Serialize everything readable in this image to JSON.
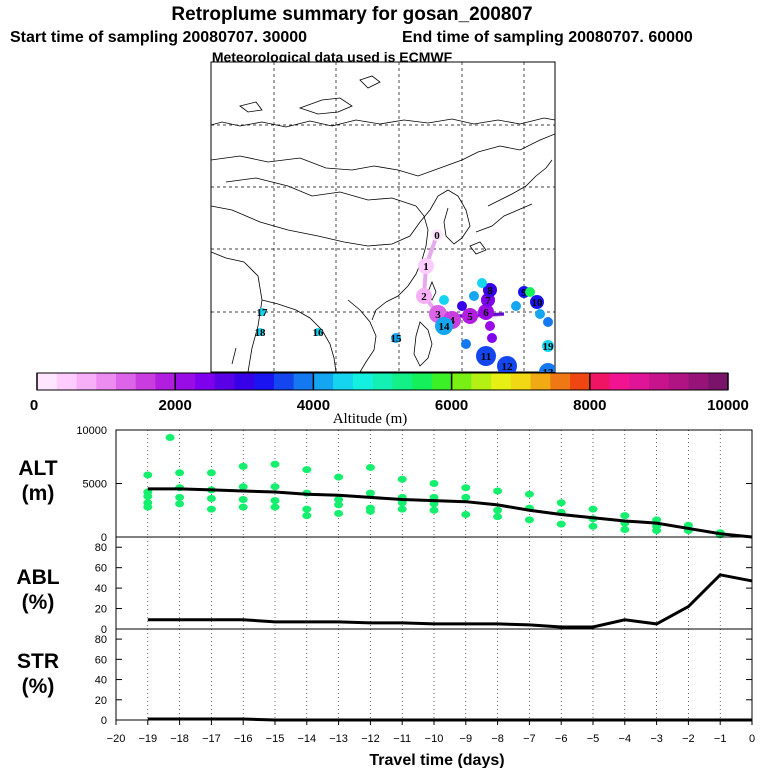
{
  "header": {
    "title": "Retroplume summary for gosan_200807",
    "start": "Start time of sampling 20080707. 30000",
    "end": "End time of sampling 20080707. 60000",
    "met": "Meteorological data used is ECMWF"
  },
  "colorbar": {
    "label": "Altitude (m)",
    "ticks": [
      "0",
      "2000",
      "4000",
      "6000",
      "8000",
      "10000"
    ],
    "colors": [
      "#ffe6ff",
      "#ffccff",
      "#f7b0f7",
      "#ec8cf0",
      "#dc64e8",
      "#c83ce0",
      "#b21ee0",
      "#9a0ce6",
      "#7e00ec",
      "#5a00e6",
      "#3800e6",
      "#1a14f0",
      "#1446f0",
      "#1478f0",
      "#14a6f0",
      "#14d4f0",
      "#14f0e0",
      "#14f0b4",
      "#14f088",
      "#14f05c",
      "#3cf028",
      "#78f014",
      "#b4f014",
      "#e6f014",
      "#f0d814",
      "#f0aa14",
      "#f07814",
      "#f04614",
      "#f01464",
      "#f01490",
      "#e01496",
      "#c8148c",
      "#b01482",
      "#961478",
      "#7a146a"
    ]
  },
  "map": {
    "numbered_positions": [
      "0",
      "1",
      "2",
      "3",
      "4",
      "5",
      "6",
      "7",
      "8",
      "9",
      "10",
      "11",
      "12",
      "13",
      "14",
      "15",
      "16",
      "17",
      "18",
      "19"
    ]
  },
  "panels": {
    "alt_label": "ALT",
    "alt_unit": "(m)",
    "abl_label": "ABL",
    "abl_unit": "(%)",
    "str_label": "STR",
    "str_unit": "(%)"
  },
  "xaxis": {
    "label": "Travel time (days)"
  },
  "chart_data": [
    {
      "type": "line",
      "title": "ALT",
      "ylabel": "ALT (m)",
      "xlabel": "Travel time (days)",
      "xlim": [
        -20,
        0
      ],
      "ylim": [
        0,
        10000
      ],
      "yticks": [
        0,
        5000,
        10000
      ],
      "xticks": [
        -20,
        -19,
        -18,
        -17,
        -16,
        -15,
        -14,
        -13,
        -12,
        -11,
        -10,
        -9,
        -8,
        -7,
        -6,
        -5,
        -4,
        -3,
        -2,
        -1,
        0
      ],
      "x": [
        -19,
        -18,
        -17,
        -16,
        -15,
        -14,
        -13,
        -12,
        -11,
        -10,
        -9,
        -8,
        -7,
        -6,
        -5,
        -4,
        -3,
        -2,
        -1,
        0
      ],
      "values": [
        4500,
        4500,
        4400,
        4300,
        4200,
        4000,
        3900,
        3700,
        3500,
        3400,
        3300,
        3000,
        2500,
        2100,
        1800,
        1500,
        1300,
        800,
        300,
        0
      ],
      "scatter_x": [
        -19,
        -19,
        -19,
        -19,
        -19,
        -18,
        -18,
        -18,
        -18,
        -17,
        -17,
        -17,
        -17,
        -16,
        -16,
        -16,
        -16,
        -15,
        -15,
        -15,
        -15,
        -14,
        -14,
        -14,
        -14,
        -13,
        -13,
        -13,
        -13,
        -12,
        -12,
        -12,
        -12,
        -11,
        -11,
        -11,
        -11,
        -10,
        -10,
        -10,
        -10,
        -9,
        -9,
        -9,
        -8,
        -8,
        -8,
        -7,
        -7,
        -7,
        -6,
        -6,
        -6,
        -5,
        -5,
        -5,
        -4,
        -4,
        -4,
        -3,
        -3,
        -3,
        -2,
        -2,
        -1,
        -1,
        -18.3
      ],
      "scatter_y": [
        5800,
        4200,
        3800,
        3200,
        2800,
        6000,
        4600,
        3700,
        3100,
        6000,
        4400,
        3600,
        2600,
        6600,
        4700,
        3500,
        2800,
        6800,
        4700,
        3400,
        2800,
        6300,
        4100,
        2600,
        2000,
        5600,
        3500,
        3000,
        2200,
        6500,
        4100,
        2700,
        2400,
        5400,
        3700,
        3200,
        2600,
        5000,
        3700,
        3100,
        2500,
        4600,
        3700,
        2100,
        4300,
        2500,
        1900,
        4000,
        2700,
        1600,
        3200,
        2300,
        1200,
        2600,
        1700,
        1000,
        2000,
        1300,
        700,
        1600,
        1000,
        600,
        1100,
        600,
        400,
        200,
        9300
      ],
      "scatter_color": "#14f06e",
      "grid": true
    },
    {
      "type": "line",
      "title": "ABL",
      "ylabel": "ABL (%)",
      "xlim": [
        -20,
        0
      ],
      "ylim": [
        0,
        90
      ],
      "yticks": [
        0,
        20,
        40,
        60,
        80
      ],
      "x": [
        -19,
        -18,
        -17,
        -16,
        -15,
        -14,
        -13,
        -12,
        -11,
        -10,
        -9,
        -8,
        -7,
        -6,
        -5,
        -4,
        -3,
        -2,
        -1,
        0
      ],
      "values": [
        9,
        9,
        9,
        9,
        7,
        7,
        7,
        6,
        6,
        5,
        5,
        5,
        4,
        2,
        2,
        9,
        5,
        22,
        53,
        47
      ],
      "grid": true
    },
    {
      "type": "line",
      "title": "STR",
      "ylabel": "STR (%)",
      "xlim": [
        -20,
        0
      ],
      "ylim": [
        0,
        90
      ],
      "yticks": [
        0,
        20,
        40,
        60,
        80
      ],
      "x": [
        -19,
        -18,
        -17,
        -16,
        -15,
        -14,
        -13,
        -12,
        -11,
        -10,
        -9,
        -8,
        -7,
        -6,
        -5,
        -4,
        -3,
        -2,
        -1,
        0
      ],
      "values": [
        1,
        1,
        1,
        1,
        0,
        0,
        0,
        0,
        0,
        0,
        0,
        0,
        0,
        0,
        0,
        0,
        0,
        0,
        0,
        0
      ],
      "grid": true
    }
  ]
}
